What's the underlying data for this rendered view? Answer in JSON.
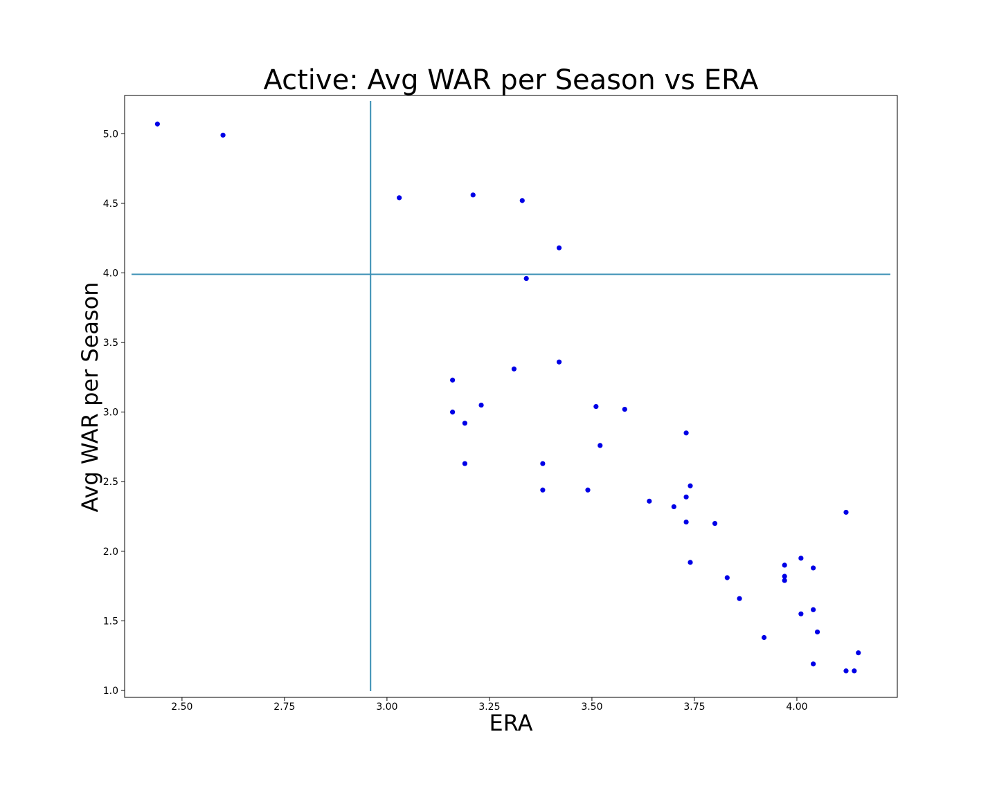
{
  "chart_data": {
    "type": "scatter",
    "title": "Active: Avg WAR per Season vs ERA",
    "xlabel": "ERA",
    "ylabel": "Avg WAR per Season",
    "xlim": [
      2.36,
      4.245
    ],
    "ylim": [
      0.95,
      5.275
    ],
    "x_ticks": [
      2.5,
      2.75,
      3.0,
      3.25,
      3.5,
      3.75,
      4.0
    ],
    "x_tick_labels": [
      "2.50",
      "2.75",
      "3.00",
      "3.25",
      "3.50",
      "3.75",
      "4.00"
    ],
    "y_ticks": [
      1.0,
      1.5,
      2.0,
      2.5,
      3.0,
      3.5,
      4.0,
      4.5,
      5.0
    ],
    "y_tick_labels": [
      "1.0",
      "1.5",
      "2.0",
      "2.5",
      "3.0",
      "3.5",
      "4.0",
      "4.5",
      "5.0"
    ],
    "grid": false,
    "colors": {
      "points": "#0000e6",
      "reference_lines": "#3a8fb4"
    },
    "reference_lines": {
      "vertical_x": 2.96,
      "horizontal_y": 3.99
    },
    "series": [
      {
        "points": [
          [
            2.44,
            5.07
          ],
          [
            2.6,
            4.99
          ],
          [
            3.03,
            4.54
          ],
          [
            3.21,
            4.56
          ],
          [
            3.33,
            4.52
          ],
          [
            3.42,
            4.18
          ],
          [
            3.34,
            3.96
          ],
          [
            3.16,
            3.23
          ],
          [
            3.31,
            3.31
          ],
          [
            3.42,
            3.36
          ],
          [
            3.16,
            3.0
          ],
          [
            3.23,
            3.05
          ],
          [
            3.19,
            2.92
          ],
          [
            3.19,
            2.63
          ],
          [
            3.38,
            2.63
          ],
          [
            3.38,
            2.44
          ],
          [
            3.49,
            2.44
          ],
          [
            3.51,
            3.04
          ],
          [
            3.58,
            3.02
          ],
          [
            3.52,
            2.76
          ],
          [
            3.73,
            2.85
          ],
          [
            3.74,
            2.47
          ],
          [
            3.64,
            2.36
          ],
          [
            3.7,
            2.32
          ],
          [
            3.73,
            2.39
          ],
          [
            3.73,
            2.21
          ],
          [
            3.8,
            2.2
          ],
          [
            3.74,
            1.92
          ],
          [
            3.83,
            1.81
          ],
          [
            3.86,
            1.66
          ],
          [
            3.92,
            1.38
          ],
          [
            3.97,
            1.9
          ],
          [
            3.97,
            1.82
          ],
          [
            3.97,
            1.79
          ],
          [
            4.01,
            1.95
          ],
          [
            4.04,
            1.88
          ],
          [
            4.01,
            1.55
          ],
          [
            4.04,
            1.58
          ],
          [
            4.05,
            1.42
          ],
          [
            4.04,
            1.19
          ],
          [
            4.12,
            2.28
          ],
          [
            4.12,
            1.14
          ],
          [
            4.15,
            1.27
          ],
          [
            4.14,
            1.14
          ]
        ]
      }
    ]
  }
}
